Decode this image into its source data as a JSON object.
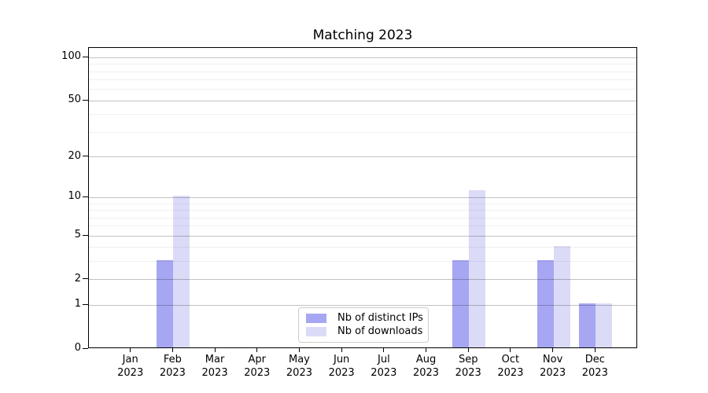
{
  "title": "Matching 2023",
  "chart_data": {
    "type": "bar",
    "title": "Matching 2023",
    "categories": [
      "Jan",
      "Feb",
      "Mar",
      "Apr",
      "May",
      "Jun",
      "Jul",
      "Aug",
      "Sep",
      "Oct",
      "Nov",
      "Dec"
    ],
    "year_label": "2023",
    "series": [
      {
        "name": "Nb of distinct IPs",
        "key": "distinct-ips",
        "color": "#a6a6f2",
        "values": [
          0,
          3,
          0,
          0,
          0,
          0,
          0,
          0,
          3,
          0,
          3,
          1
        ]
      },
      {
        "name": "Nb of downloads",
        "key": "downloads",
        "color": "#dbdbf8",
        "values": [
          0,
          10,
          0,
          0,
          0,
          0,
          0,
          0,
          11,
          0,
          4,
          1
        ]
      }
    ],
    "xlabel": "",
    "ylabel": "",
    "y_scale": "log1p",
    "y_major_ticks": [
      0,
      1,
      2,
      5,
      10,
      20,
      50,
      100
    ],
    "y_minor_ticks": [
      3,
      4,
      6,
      7,
      8,
      9,
      30,
      40,
      60,
      70,
      80,
      90
    ],
    "ylim": [
      0,
      116
    ],
    "grid": true,
    "legend_position": "lower center"
  }
}
